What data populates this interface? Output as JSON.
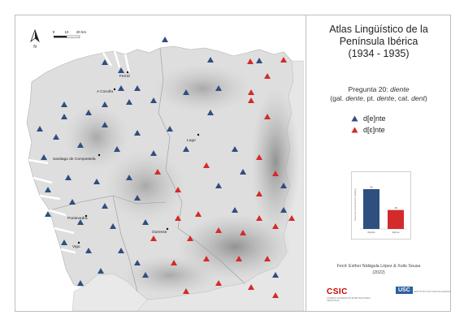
{
  "title": {
    "line1": "Atlas Lingüístico de la",
    "line2": "Península Ibérica",
    "line3": "(1934 - 1935)"
  },
  "question": {
    "prefix": "Pregunta 20: ",
    "word": "diente",
    "variants_open": "(gal. ",
    "gal": "dente",
    "pt_label": ", pt. ",
    "pt": "dente",
    "cat_label": ", cat. ",
    "cat": "dent",
    "variants_close": ")"
  },
  "legend": [
    {
      "label": "d[e]nte",
      "color": "#2e4f7f"
    },
    {
      "label": "d[ɛ]nte",
      "color": "#d42a2a"
    }
  ],
  "scale_bar": {
    "labels": [
      "0",
      "10",
      "20 km"
    ]
  },
  "north_arrow": {
    "label": "N"
  },
  "places": [
    {
      "name": "Ferrol"
    },
    {
      "name": "A Coruña"
    },
    {
      "name": "Lugo"
    },
    {
      "name": "Santiago de Compostela"
    },
    {
      "name": "Pontevedra"
    },
    {
      "name": "Ourense"
    },
    {
      "name": "Vigo"
    }
  ],
  "chart_data": {
    "type": "bar",
    "categories": [
      "d[e]nte",
      "d[ɛ]nte"
    ],
    "values": [
      42,
      20
    ],
    "colors": [
      "#2e4f7f",
      "#d42a2a"
    ],
    "ylabel": "Puntos de encuesta ALPI (Galicia)",
    "ylim": [
      0,
      48
    ]
  },
  "credit": {
    "line1": "Fecit: Esther Nidágula López & Xulio Sousa",
    "line2": "(2022)"
  },
  "logos": {
    "csic": "CSIC",
    "csic_sub": "CONSEJO SUPERIOR DE INVESTIGACIONES CIENTÍFICAS",
    "usc": "USC",
    "usc_sub": "INSTITUTO DA LINGUA GALEGA"
  }
}
